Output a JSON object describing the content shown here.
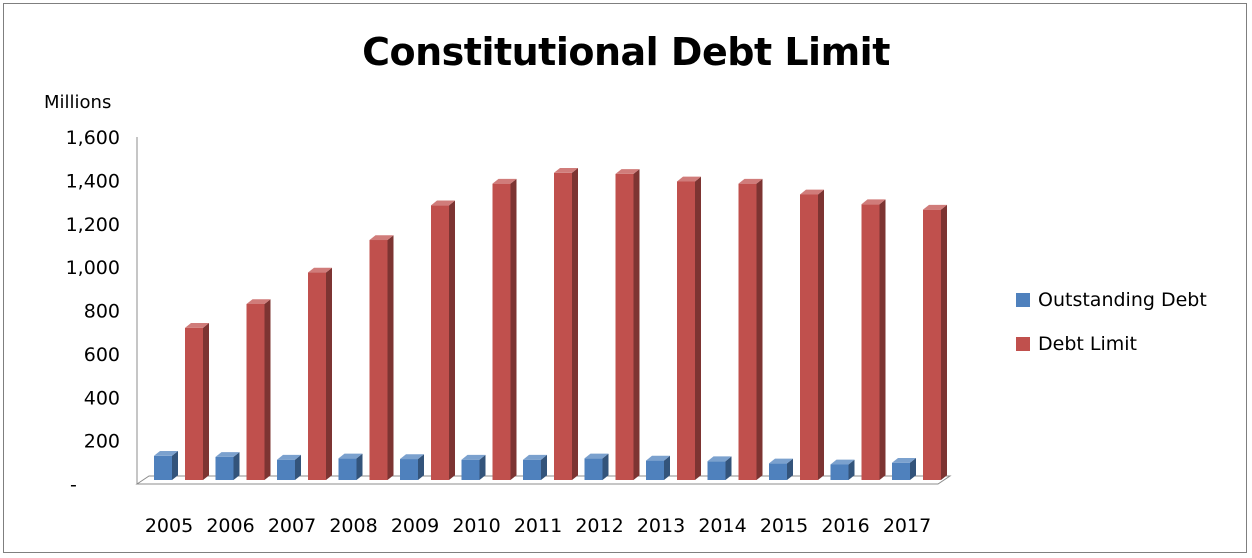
{
  "chart_data": {
    "type": "bar",
    "title": "Constitutional Debt Limit",
    "unit_label": "Millions",
    "categories": [
      "2005",
      "2006",
      "2007",
      "2008",
      "2009",
      "2010",
      "2011",
      "2012",
      "2013",
      "2014",
      "2015",
      "2016",
      "2017"
    ],
    "series": [
      {
        "name": "Outstanding Debt",
        "color": "#4f81bd",
        "values": [
          130,
          125,
          112,
          118,
          115,
          112,
          112,
          118,
          108,
          105,
          95,
          90,
          98
        ]
      },
      {
        "name": "Debt Limit",
        "color": "#c0504d",
        "values": [
          720,
          830,
          975,
          1125,
          1285,
          1385,
          1435,
          1430,
          1395,
          1385,
          1335,
          1290,
          1265
        ]
      }
    ],
    "y_ticks": [
      "-",
      "200",
      "400",
      "600",
      "800",
      "1,000",
      "1,200",
      "1,400",
      "1,600"
    ],
    "ylim": [
      0,
      1600
    ],
    "grid": false,
    "legend_position": "right"
  }
}
